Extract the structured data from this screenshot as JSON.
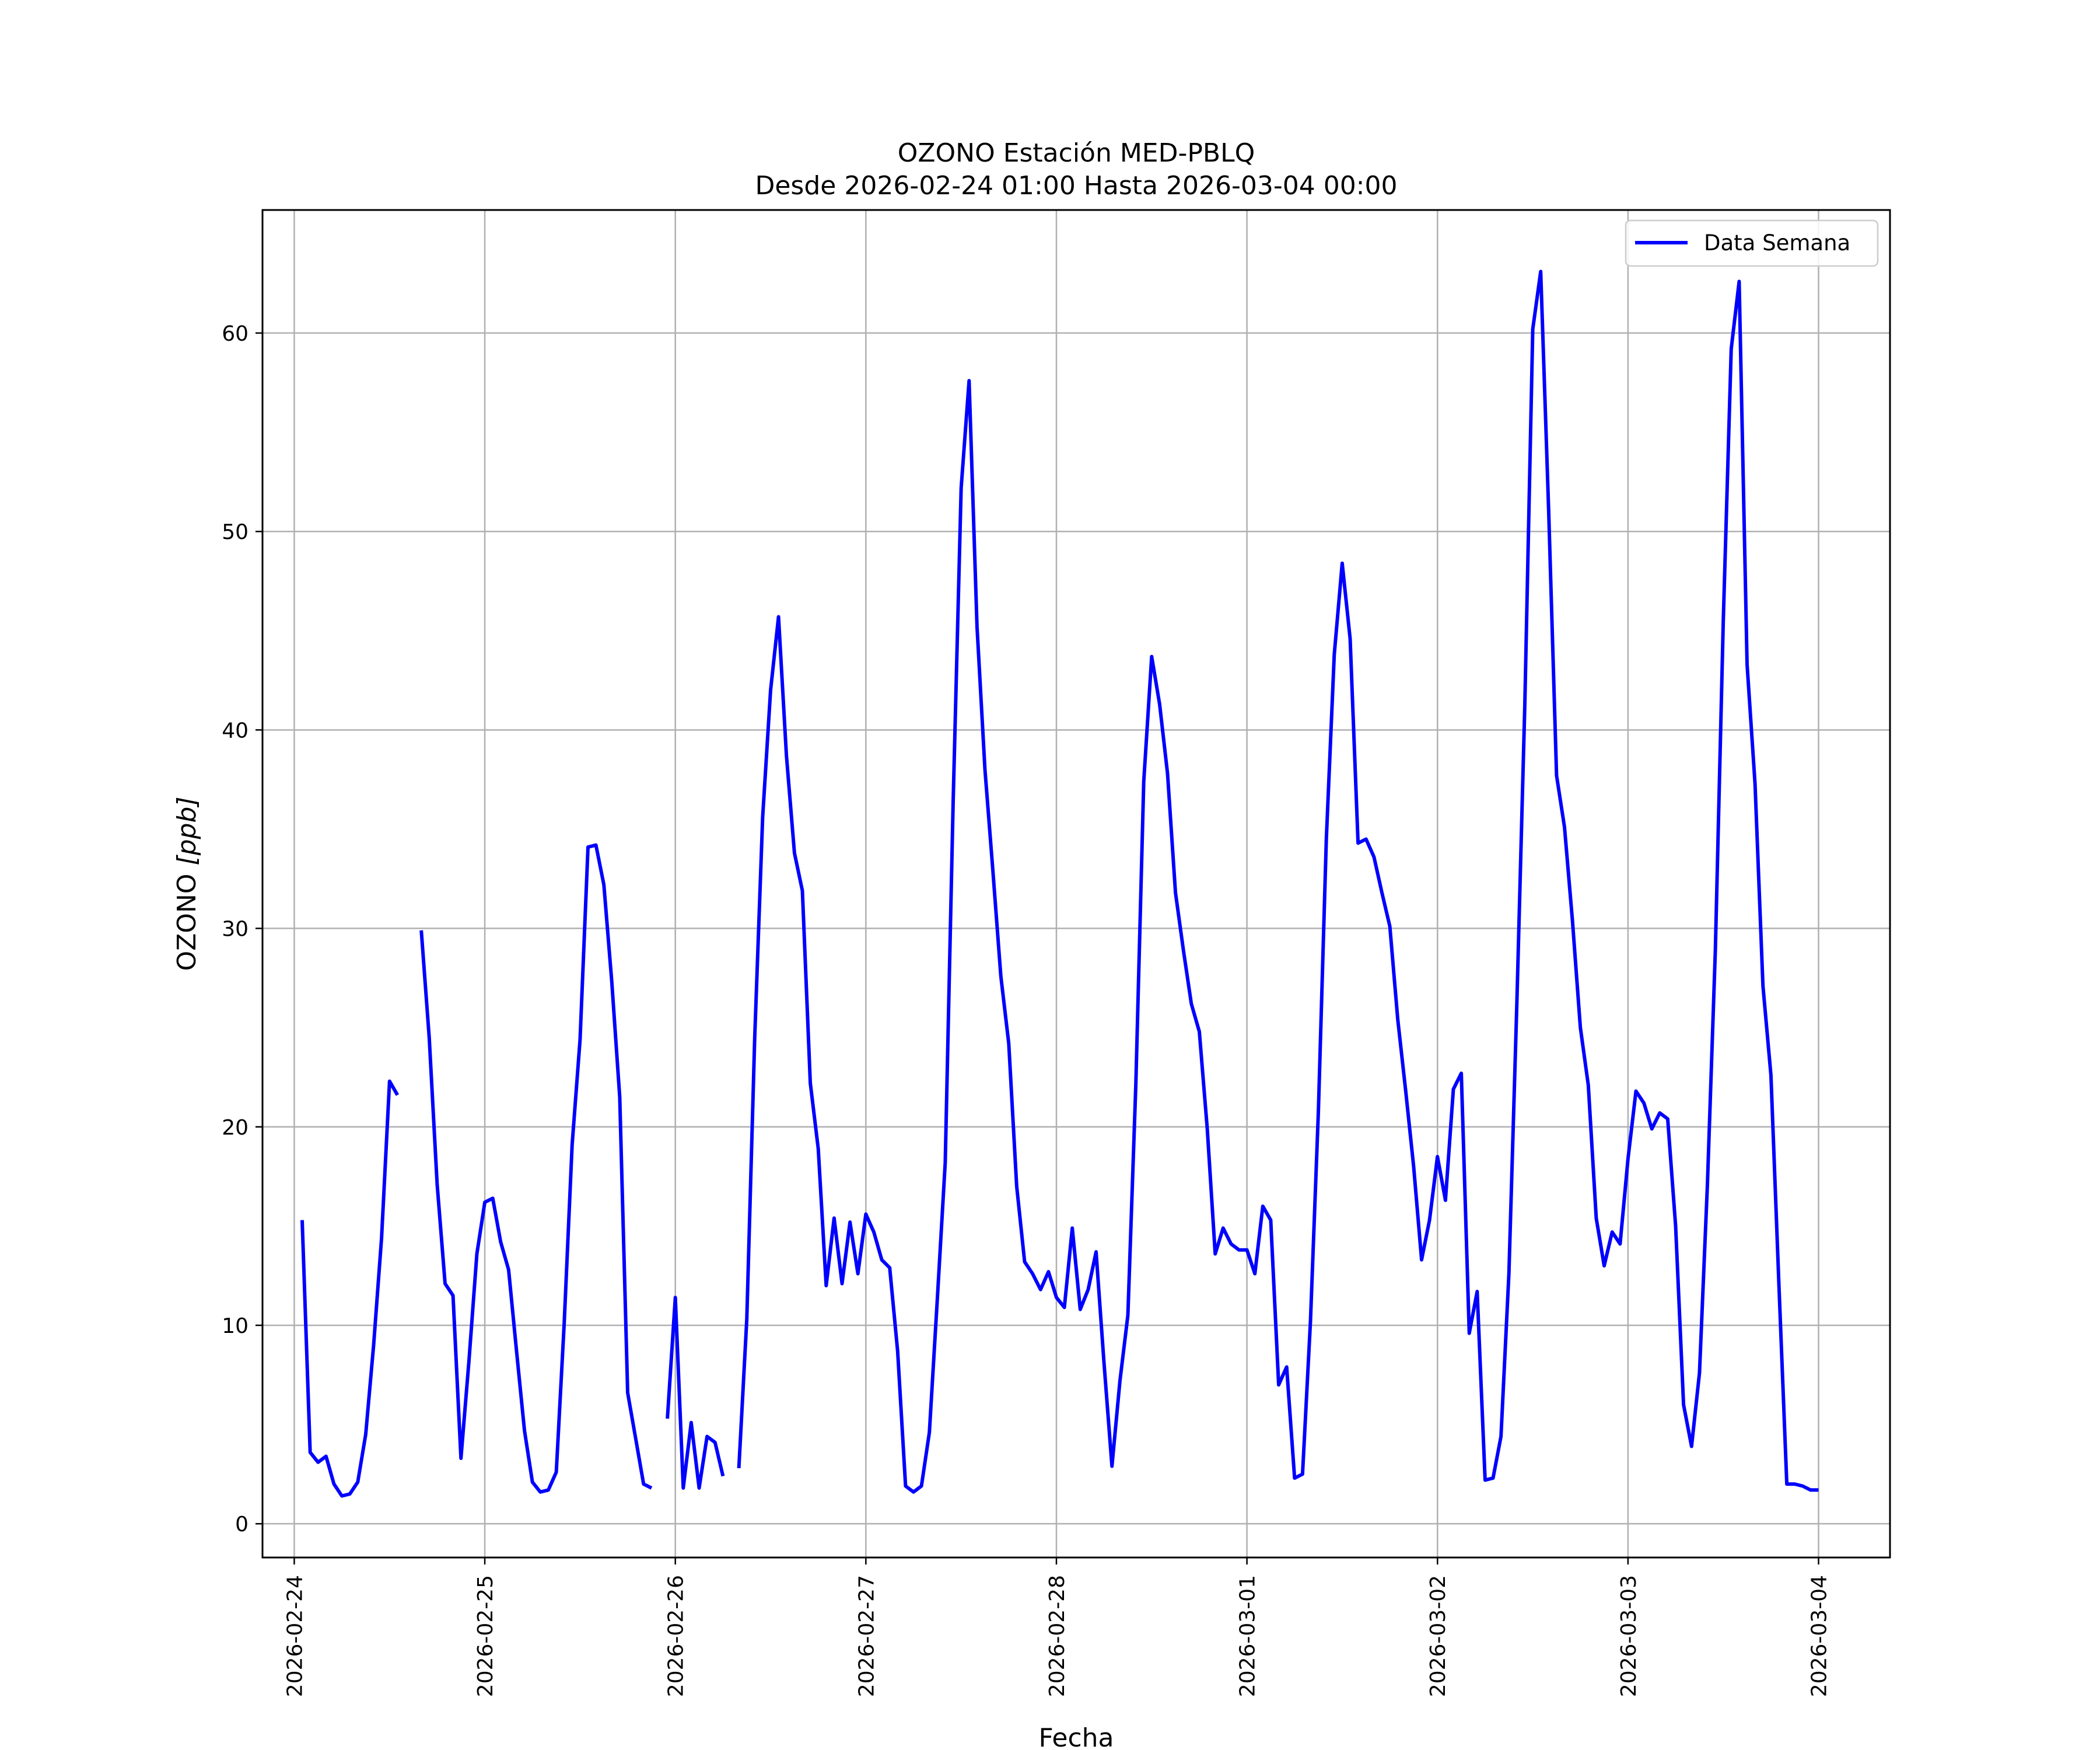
{
  "chart_data": {
    "type": "line",
    "title": "OZONO Estación MED-PBLQ",
    "subtitle": "Desde 2026-02-24 01:00 Hasta 2026-03-04 00:00",
    "xlabel": "Fecha",
    "ylabel": "OZONO [ppb]",
    "ylabel_prefix": "OZONO ",
    "ylabel_unit": "[ppb]",
    "xlim": [
      "2026-02-23 20:00",
      "2026-03-04 09:00"
    ],
    "ylim": [
      -1.7,
      66.2
    ],
    "grid": true,
    "legend_position": "top-right",
    "x_tick_labels": [
      "2026-02-24",
      "2026-02-25",
      "2026-02-26",
      "2026-02-27",
      "2026-02-28",
      "2026-03-01",
      "2026-03-02",
      "2026-03-03",
      "2026-03-04"
    ],
    "y_ticks": [
      0,
      10,
      20,
      30,
      40,
      50,
      60
    ],
    "series": [
      {
        "name": "Data Semana",
        "color": "#0000ff",
        "segments": [
          {
            "start": "2026-02-24 01:00",
            "values": [
              15.3,
              3.6,
              3.1,
              3.4,
              2.0,
              1.4,
              1.5,
              2.1,
              4.5,
              9.0,
              14.4,
              22.3,
              21.6
            ]
          },
          {
            "start": "2026-02-24 16:00",
            "values": [
              29.9,
              24.5,
              17.1,
              12.1,
              11.5,
              3.3,
              8.2,
              13.6,
              16.2,
              16.4,
              14.2,
              12.8,
              8.7,
              4.7,
              2.1,
              1.6,
              1.7,
              2.6,
              10.1,
              19.1,
              24.4,
              34.1,
              34.2,
              32.2,
              27.3,
              21.5,
              6.6,
              4.3,
              2.0,
              1.8
            ]
          },
          {
            "start": "2026-02-25 23:00",
            "values": [
              5.3,
              11.4,
              1.8,
              5.1,
              1.8,
              4.4,
              4.1,
              2.4
            ]
          },
          {
            "start": "2026-02-26 08:00",
            "values": [
              2.8,
              10.3,
              24.5,
              35.6,
              42.0,
              45.7,
              38.7,
              33.8,
              31.9,
              22.2,
              18.9,
              12.0,
              15.4,
              12.1,
              15.2,
              12.6,
              15.6,
              14.7,
              13.3,
              12.9,
              8.7,
              1.9,
              1.6,
              1.9,
              4.6,
              11.3,
              18.2,
              36.4,
              52.2,
              57.6,
              45.2,
              38.0,
              32.9,
              27.6,
              24.2,
              17.0,
              13.2,
              12.6,
              11.8,
              12.7,
              11.4,
              10.9,
              14.9,
              10.8,
              11.8,
              13.7,
              8.1,
              2.9,
              7.2,
              10.5,
              22.1,
              37.4,
              43.7,
              41.3,
              37.8,
              31.8,
              28.9,
              26.2,
              24.8,
              19.9,
              13.6,
              14.9,
              14.1,
              13.8,
              13.8,
              12.6,
              16.0,
              15.3,
              7.0,
              7.9,
              2.3,
              2.5,
              10.2,
              20.8,
              34.5,
              43.8,
              48.4,
              44.6,
              34.3,
              34.5,
              33.6,
              31.8,
              30.1,
              25.4,
              21.8,
              18.0,
              13.3,
              15.3,
              18.5,
              16.3,
              21.9,
              22.7,
              9.6,
              11.7,
              2.2,
              2.3,
              4.4,
              12.6,
              26.2,
              41.3,
              60.2,
              63.1,
              51.1,
              37.7,
              35.1,
              30.4,
              25.0,
              22.1,
              15.4,
              13.0,
              14.7,
              14.1,
              18.4,
              21.8,
              21.2,
              19.9,
              20.7,
              20.4,
              15.0,
              6.0,
              3.9,
              7.6,
              17.1,
              28.9,
              45.5,
              59.2,
              62.6,
              43.3,
              37.3,
              27.1,
              22.6,
              12.1,
              2.0,
              2.0,
              1.9,
              1.7,
              1.7
            ]
          }
        ]
      }
    ]
  }
}
